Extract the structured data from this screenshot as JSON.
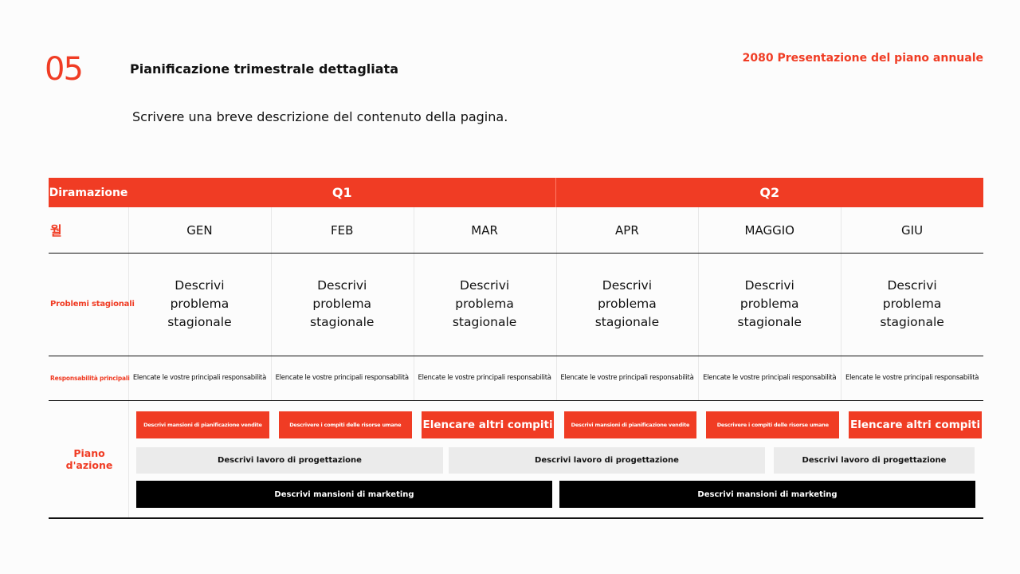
{
  "header": {
    "number": "05",
    "title": "Pianificazione trimestrale dettagliata",
    "brand": "2080 Presentazione del piano annuale"
  },
  "description": "Scrivere una breve descrizione del contenuto della pagina.",
  "table": {
    "corner": "Diramazione",
    "quarters": [
      "Q1",
      "Q2"
    ],
    "month_label": "월",
    "months": [
      "GEN",
      "FEB",
      "MAR",
      "APR",
      "MAGGIO",
      "GIU"
    ],
    "rows": [
      {
        "label": "Problemi stagionali",
        "cells": [
          "Descrivi problema stagionale",
          "Descrivi problema stagionale",
          "Descrivi problema stagionale",
          "Descrivi problema stagionale",
          "Descrivi problema stagionale",
          "Descrivi problema stagionale"
        ]
      },
      {
        "label": "Responsabilità principali",
        "cells": [
          "Elencate le vostre principali responsabilità",
          "Elencate le vostre principali responsabilità",
          "Elencate le vostre principali responsabilità",
          "Elencate le vostre principali responsabilità",
          "Elencate le vostre principali responsabilità",
          "Elencate le vostre principali responsabilità"
        ]
      }
    ],
    "action_plan": {
      "label": "Piano d'azione",
      "tasks": [
        "Descrivi mansioni di pianificazione vendite",
        "Descrivere i compiti delle risorse umane",
        "Elencare altri compiti",
        "Descrivi mansioni di pianificazione vendite",
        "Descrivere i compiti delle risorse umane",
        "Elencare altri compiti"
      ],
      "design": [
        "Descrivi lavoro di progettazione",
        "Descrivi lavoro di progettazione",
        "Descrivi lavoro di progettazione"
      ],
      "marketing": [
        "Descrivi mansioni di marketing",
        "Descrivi mansioni di marketing"
      ]
    }
  }
}
